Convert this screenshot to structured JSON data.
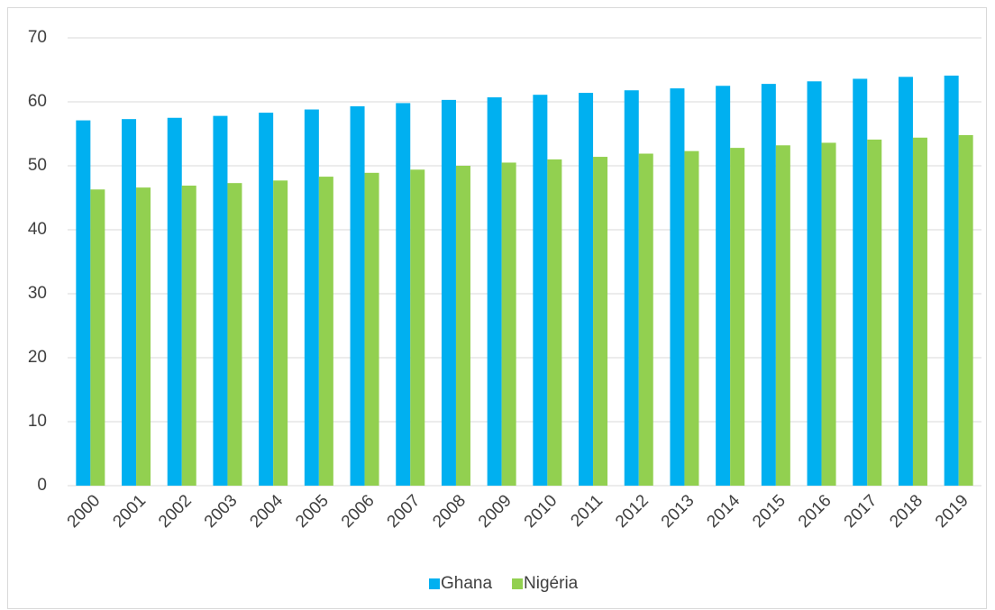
{
  "chart_data": {
    "type": "bar",
    "categories": [
      "2000",
      "2001",
      "2002",
      "2003",
      "2004",
      "2005",
      "2006",
      "2007",
      "2008",
      "2009",
      "2010",
      "2011",
      "2012",
      "2013",
      "2014",
      "2015",
      "2016",
      "2017",
      "2018",
      "2019"
    ],
    "series": [
      {
        "name": "Ghana",
        "color": "#00b0f0",
        "values": [
          57.1,
          57.3,
          57.5,
          57.8,
          58.3,
          58.8,
          59.3,
          59.8,
          60.3,
          60.7,
          61.1,
          61.4,
          61.8,
          62.1,
          62.5,
          62.8,
          63.2,
          63.6,
          63.9,
          64.1
        ]
      },
      {
        "name": "Nigéria",
        "color": "#92d050",
        "values": [
          46.3,
          46.6,
          46.9,
          47.3,
          47.7,
          48.3,
          48.9,
          49.4,
          50.0,
          50.5,
          51.0,
          51.4,
          51.9,
          52.3,
          52.8,
          53.2,
          53.6,
          54.1,
          54.4,
          54.8
        ]
      }
    ],
    "ylim": [
      0,
      70
    ],
    "yticks": [
      0,
      10,
      20,
      30,
      40,
      50,
      60,
      70
    ],
    "grid": true,
    "legend": "bottom"
  }
}
